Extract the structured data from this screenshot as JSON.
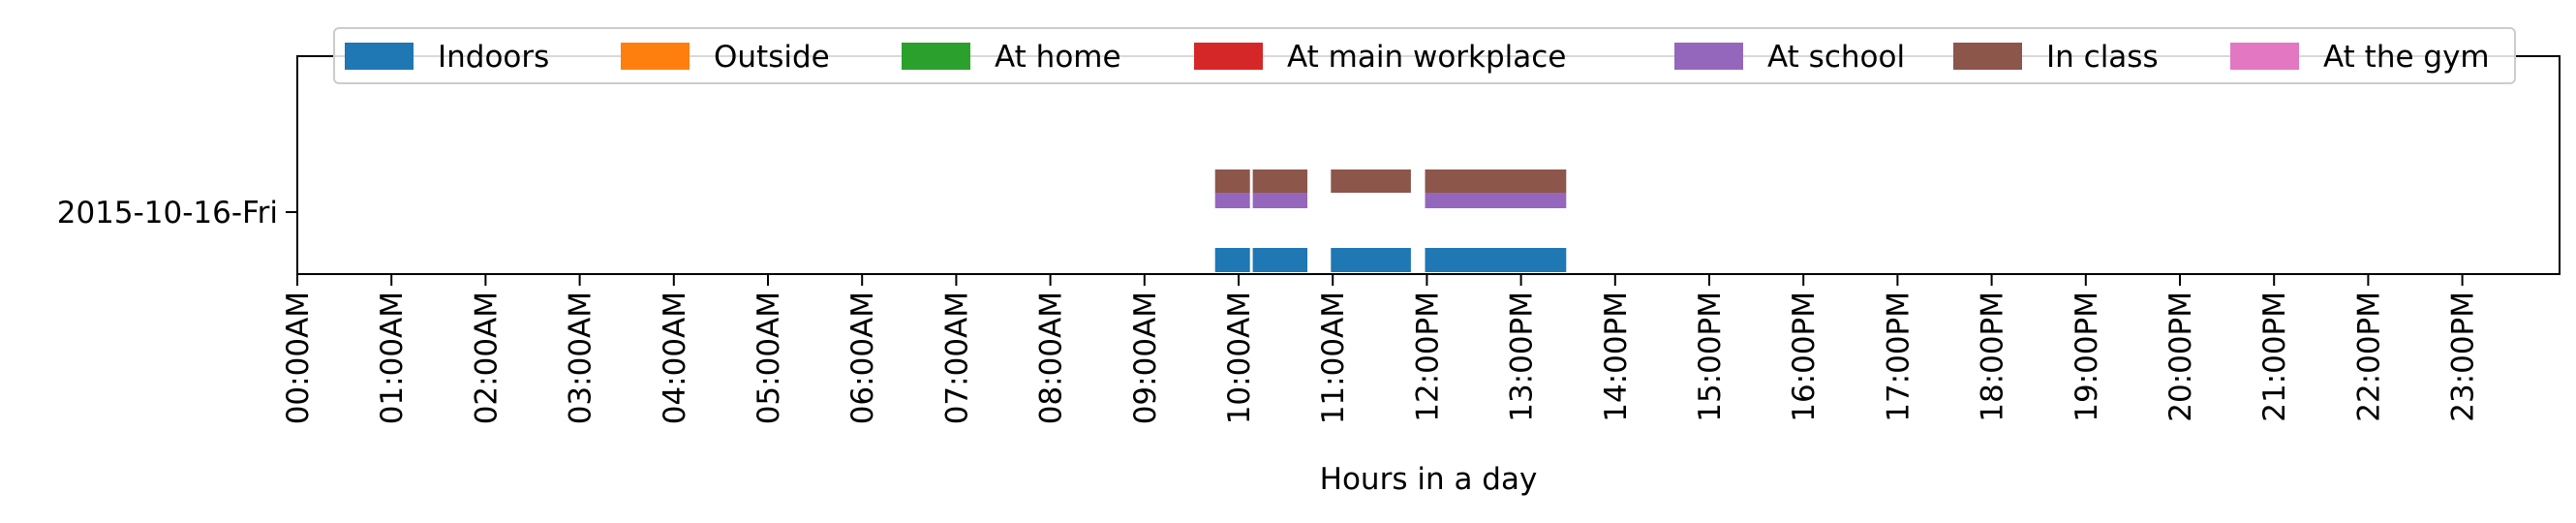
{
  "chart_data": {
    "type": "timeline",
    "xlabel": "Hours in a day",
    "x_range_hours": [
      0,
      24
    ],
    "x_ticks": [
      "00:00AM",
      "01:00AM",
      "02:00AM",
      "03:00AM",
      "04:00AM",
      "05:00AM",
      "06:00AM",
      "07:00AM",
      "08:00AM",
      "09:00AM",
      "10:00AM",
      "11:00AM",
      "12:00PM",
      "13:00PM",
      "14:00PM",
      "15:00PM",
      "16:00PM",
      "17:00PM",
      "18:00PM",
      "19:00PM",
      "20:00PM",
      "21:00PM",
      "22:00PM",
      "23:00PM"
    ],
    "y_labels": [
      "2015-10-16-Fri"
    ],
    "legend_position": "top",
    "legend": [
      {
        "name": "Indoors",
        "color": "#1f77b4"
      },
      {
        "name": "Outside",
        "color": "#ff7f0e"
      },
      {
        "name": "At home",
        "color": "#2ca02c"
      },
      {
        "name": "At main workplace",
        "color": "#d62728"
      },
      {
        "name": "At school",
        "color": "#9467bd"
      },
      {
        "name": "In class",
        "color": "#8c564b"
      },
      {
        "name": "At the gym",
        "color": "#e377c2"
      }
    ],
    "series": [
      {
        "name": "Indoors",
        "day": "2015-10-16-Fri",
        "intervals": [
          [
            9.75,
            10.12
          ],
          [
            10.15,
            10.73
          ],
          [
            10.98,
            11.83
          ],
          [
            11.98,
            13.48
          ]
        ]
      },
      {
        "name": "At school",
        "day": "2015-10-16-Fri",
        "intervals": [
          [
            9.75,
            10.12
          ],
          [
            10.15,
            10.73
          ],
          [
            11.98,
            13.48
          ]
        ]
      },
      {
        "name": "In class",
        "day": "2015-10-16-Fri",
        "intervals": [
          [
            9.75,
            10.12
          ],
          [
            10.15,
            10.73
          ],
          [
            10.98,
            11.83
          ],
          [
            11.98,
            13.48
          ]
        ]
      }
    ]
  }
}
